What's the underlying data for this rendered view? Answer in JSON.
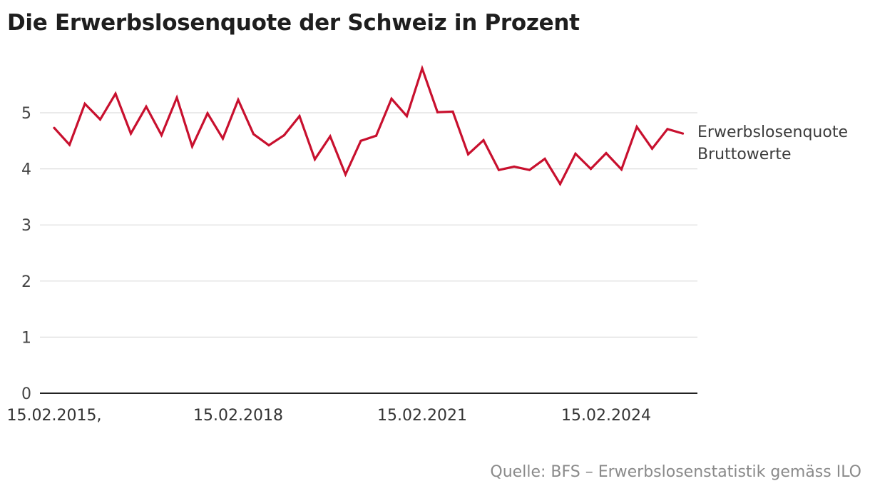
{
  "title": "Die Erwerbslosenquote der Schweiz in Prozent",
  "source": "Quelle: BFS – Erwerbslosenstatistik gemäss ILO",
  "colors": {
    "line": "#c8102e",
    "grid": "#dddddd",
    "axis": "#222222"
  },
  "chart_data": {
    "type": "line",
    "title": "Die Erwerbslosenquote der Schweiz in Prozent",
    "xlabel": "",
    "ylabel": "",
    "ylim": [
      0,
      6
    ],
    "yticks": [
      0,
      1,
      2,
      3,
      4,
      5
    ],
    "x_tick_labels": [
      {
        "index": 0,
        "label": "15.02.2015,"
      },
      {
        "index": 12,
        "label": "15.02.2018"
      },
      {
        "index": 24,
        "label": "15.02.2021"
      },
      {
        "index": 36,
        "label": "15.02.2024"
      }
    ],
    "series": [
      {
        "name": "Erwerbslosenquote Bruttowerte",
        "label_lines": [
          "Erwerbslosenquote",
          "Bruttowerte"
        ],
        "values": [
          4.73,
          4.43,
          5.16,
          4.88,
          5.34,
          4.63,
          5.11,
          4.6,
          5.27,
          4.4,
          4.99,
          4.54,
          5.23,
          4.62,
          4.42,
          4.6,
          4.94,
          4.17,
          4.58,
          3.9,
          4.5,
          4.59,
          5.25,
          4.94,
          5.79,
          5.01,
          5.02,
          4.26,
          4.51,
          3.98,
          4.04,
          3.98,
          4.18,
          3.73,
          4.27,
          4.0,
          4.28,
          3.99,
          4.75,
          4.36,
          4.71,
          4.63
        ]
      }
    ]
  }
}
